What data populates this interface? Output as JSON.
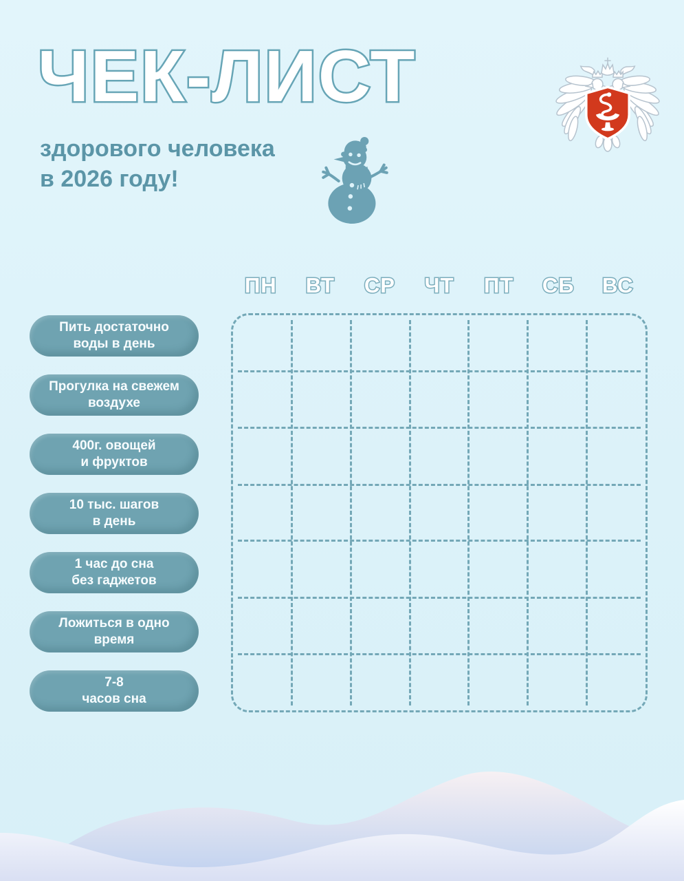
{
  "page": {
    "title": "ЧЕК-ЛИСТ",
    "subtitle": [
      "здорового человека",
      "в 2026 году!"
    ]
  },
  "header": {
    "emblem": "emblem-ministry-of-health-russia",
    "decoration": "snowman"
  },
  "colors": {
    "background": "#DCF2F9",
    "accent_teal": "#67A5B6",
    "subtitle_text": "#5B95A7",
    "pill_background": "#6FA3B1",
    "pill_text": "#FFFFFF",
    "grid_line": "#74A8B7",
    "emblem_red": "#D2391D",
    "wave_lavender": "#C3D3EF"
  },
  "tracker": {
    "columns": 7,
    "rows": 7,
    "day_headers": [
      "ПН",
      "ВТ",
      "СР",
      "ЧТ",
      "ПТ",
      "СБ",
      "ВС"
    ],
    "habits": [
      {
        "line1": "Пить достаточно",
        "line2": "воды в день"
      },
      {
        "line1": "Прогулка на свежем",
        "line2": "воздухе"
      },
      {
        "line1": "400г. овощей",
        "line2": "и фруктов"
      },
      {
        "line1": "10 тыс. шагов",
        "line2": "в день"
      },
      {
        "line1": "1 час до сна",
        "line2": "без гаджетов"
      },
      {
        "line1": "Ложиться в одно",
        "line2": "время"
      },
      {
        "line1": "7-8",
        "line2": "часов сна"
      }
    ]
  }
}
